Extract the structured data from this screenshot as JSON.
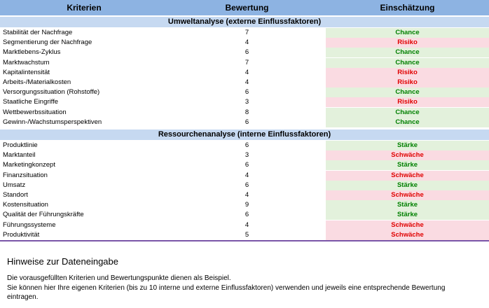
{
  "table": {
    "header": [
      "Kriterien",
      "Bewertung",
      "Einschätzung"
    ],
    "sections": [
      {
        "title": "Umweltanalyse (externe Einflussfaktoren)",
        "rows": [
          {
            "criterion": "Stabilität der Nachfrage",
            "rating": 7,
            "assessment": "Chance",
            "color": "#008000",
            "fill": "#e3f1dc"
          },
          {
            "criterion": "Segmentierung der Nachfrage",
            "rating": 4,
            "assessment": "Risiko",
            "color": "#e00000",
            "fill": "#fadbe2"
          },
          {
            "criterion": "Marktlebens-Zyklus",
            "rating": 6,
            "assessment": "Chance",
            "color": "#008000",
            "fill": "#e3f1dc"
          },
          {
            "criterion": "Marktwachstum",
            "rating": 7,
            "assessment": "Chance",
            "color": "#008000",
            "fill": "#e3f1dc"
          },
          {
            "criterion": "Kapitalintensität",
            "rating": 4,
            "assessment": "Risiko",
            "color": "#e00000",
            "fill": "#fadbe2"
          },
          {
            "criterion": "Arbeits-/Materialkosten",
            "rating": 4,
            "assessment": "Risiko",
            "color": "#e00000",
            "fill": "#fadbe2"
          },
          {
            "criterion": "Versorgungssituation (Rohstoffe)",
            "rating": 6,
            "assessment": "Chance",
            "color": "#008000",
            "fill": "#e3f1dc"
          },
          {
            "criterion": "Staatliche Eingriffe",
            "rating": 3,
            "assessment": "Risiko",
            "color": "#e00000",
            "fill": "#fadbe2"
          },
          {
            "criterion": "Wettbewerbssituation",
            "rating": 8,
            "assessment": "Chance",
            "color": "#008000",
            "fill": "#e3f1dc"
          },
          {
            "criterion": "Gewinn-/Wachstumsperspektiven",
            "rating": 6,
            "assessment": "Chance",
            "color": "#008000",
            "fill": "#e3f1dc"
          }
        ]
      },
      {
        "title": "Ressourchenanalyse (interne Einflussfaktoren)",
        "rows": [
          {
            "criterion": "Produktlinie",
            "rating": 6,
            "assessment": "Stärke",
            "color": "#008000",
            "fill": "#e3f1dc"
          },
          {
            "criterion": "Marktanteil",
            "rating": 3,
            "assessment": "Schwäche",
            "color": "#e00000",
            "fill": "#fadbe2"
          },
          {
            "criterion": "Marketingkonzept",
            "rating": 6,
            "assessment": "Stärke",
            "color": "#008000",
            "fill": "#e3f1dc"
          },
          {
            "criterion": "Finanzsituation",
            "rating": 4,
            "assessment": "Schwäche",
            "color": "#e00000",
            "fill": "#fadbe2"
          },
          {
            "criterion": "Umsatz",
            "rating": 6,
            "assessment": "Stärke",
            "color": "#008000",
            "fill": "#e3f1dc"
          },
          {
            "criterion": "Standort",
            "rating": 4,
            "assessment": "Schwäche",
            "color": "#e00000",
            "fill": "#fadbe2"
          },
          {
            "criterion": "Kostensituation",
            "rating": 9,
            "assessment": "Stärke",
            "color": "#008000",
            "fill": "#e3f1dc"
          },
          {
            "criterion": "Qualität der Führungskräfte",
            "rating": 6,
            "assessment": "Stärke",
            "color": "#008000",
            "fill": "#e3f1dc"
          },
          {
            "criterion": "Führungssysteme",
            "rating": 4,
            "assessment": "Schwäche",
            "color": "#e00000",
            "fill": "#fadbe2"
          },
          {
            "criterion": "Produktivität",
            "rating": 5,
            "assessment": "Schwäche",
            "color": "#e00000",
            "fill": "#fadbe2"
          }
        ]
      }
    ]
  },
  "notes": {
    "title": "Hinweise zur Dateneingabe",
    "lines": [
      "Die vorausgefüllten Kriterien und Bewertungspunkte dienen als Beispiel.",
      "Sie können hier Ihre eigenen Kriterien (bis zu 10 interne und externe Einflussfaktoren) verwenden und jeweils eine entsprechende Bewertung eintragen."
    ]
  }
}
